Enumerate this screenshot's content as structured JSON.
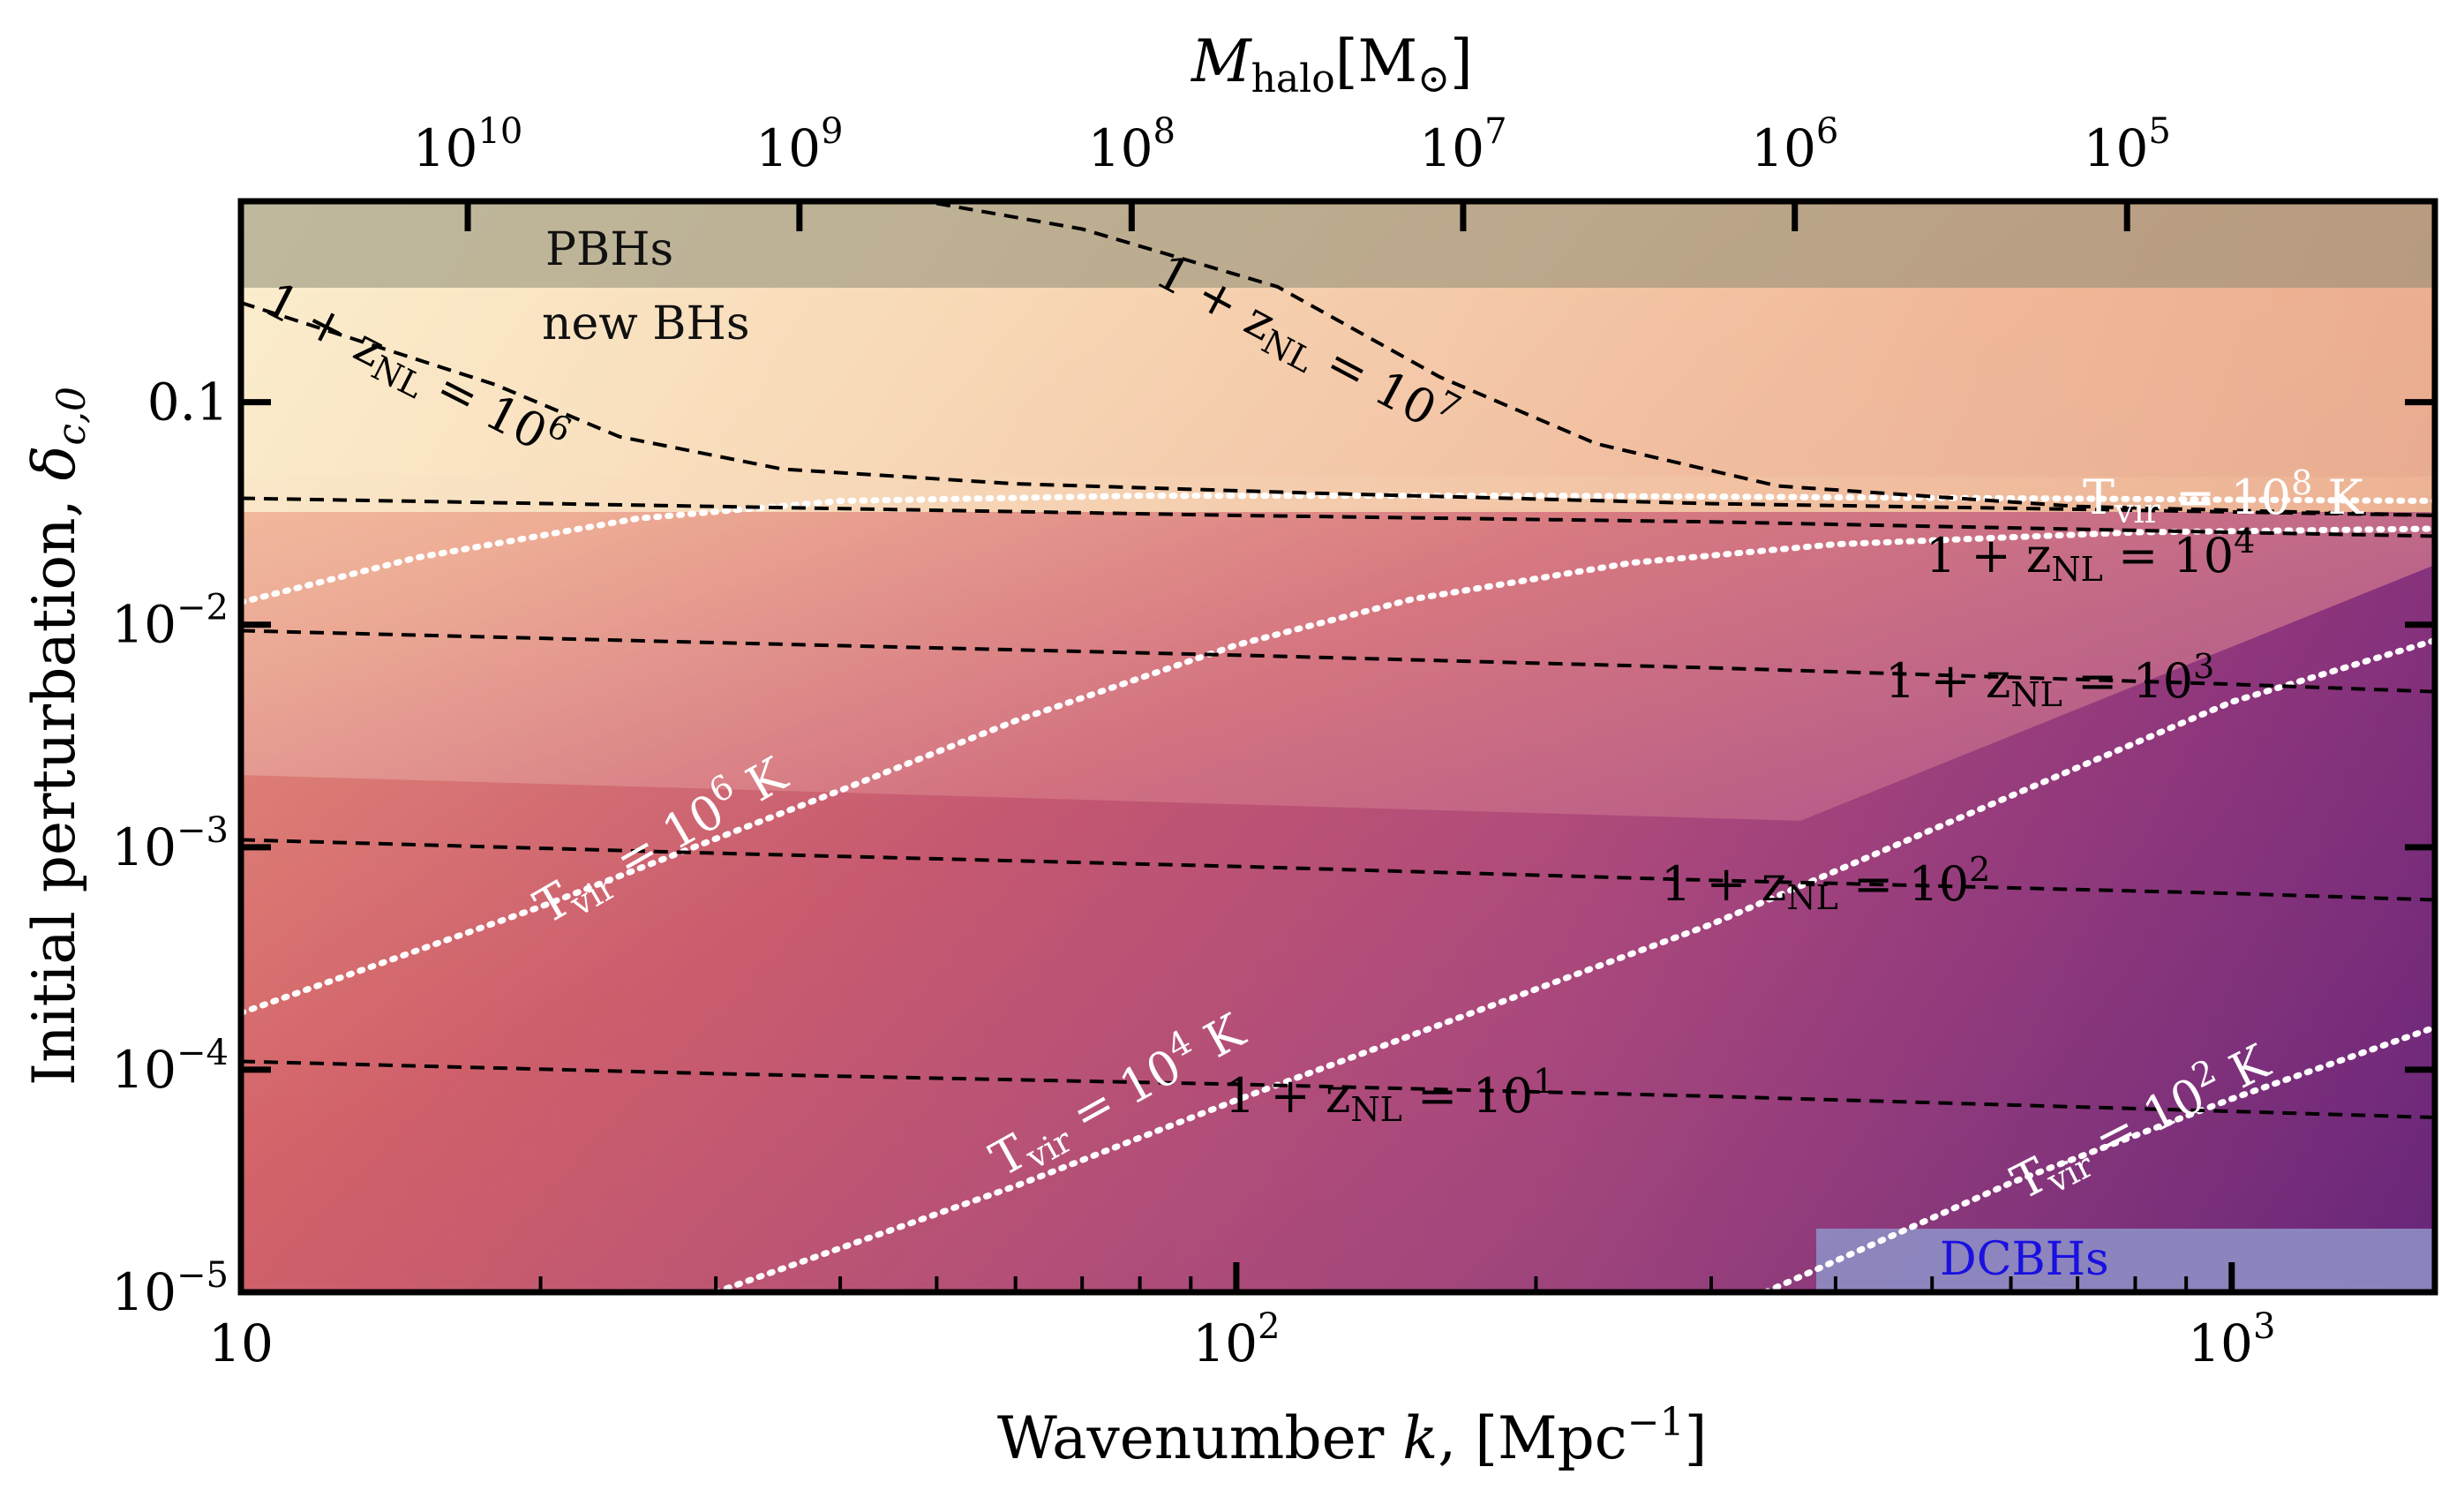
{
  "chart_data": {
    "type": "heatmap",
    "title": "",
    "xlabel": "Wavenumber k, [Mpc⁻¹]",
    "xlabel_main": "Wavenumber ",
    "xlabel_var": "k",
    "xlabel_unit": ", [Mpc",
    "xlabel_exp": "−1",
    "xlabel_close": "]",
    "ylabel": "Initial perturbation, δc,0",
    "ylabel_main": "Initial perturbation, ",
    "ylabel_var": "δ",
    "ylabel_sub": "c,0",
    "top_label": "Mhalo[M⊙]",
    "top_label_var": "M",
    "top_label_sub": "halo",
    "top_label_unit": "[M",
    "top_label_sun": "⊙",
    "top_label_close": "]",
    "xscale": "log",
    "yscale": "log",
    "xlim": [
      10,
      1600
    ],
    "ylim": [
      1e-05,
      0.8
    ],
    "x_ticks": [
      {
        "value": 10,
        "base": "10",
        "exp": ""
      },
      {
        "value": 100,
        "base": "10",
        "exp": "2"
      },
      {
        "value": 1000,
        "base": "10",
        "exp": "3"
      }
    ],
    "y_ticks": [
      {
        "value": 1e-05,
        "base": "10",
        "exp": "−5"
      },
      {
        "value": 0.0001,
        "base": "10",
        "exp": "−4"
      },
      {
        "value": 0.001,
        "base": "10",
        "exp": "−3"
      },
      {
        "value": 0.01,
        "base": "10",
        "exp": "−2"
      },
      {
        "value": 0.1,
        "base": "0.1",
        "exp": ""
      }
    ],
    "top_ticks": [
      {
        "k": 16.9,
        "base": "10",
        "exp": "10"
      },
      {
        "k": 36.4,
        "base": "10",
        "exp": "9"
      },
      {
        "k": 78.5,
        "base": "10",
        "exp": "8"
      },
      {
        "k": 169,
        "base": "10",
        "exp": "7"
      },
      {
        "k": 364,
        "base": "10",
        "exp": "6"
      },
      {
        "k": 785,
        "base": "10",
        "exp": "5"
      }
    ],
    "colormap": "magma (light at high δ, low k; dark at low δ, high k)",
    "regions": [
      {
        "name": "PBHs",
        "label": "PBHs",
        "y_min": 0.34,
        "y_max": 0.8,
        "color": "#8c8c74"
      },
      {
        "name": "new BHs",
        "label": "new BHs",
        "y_max": 0.34
      },
      {
        "name": "DCBHs",
        "label": "DCBHs",
        "x_min": 400,
        "x_max": 1600,
        "y_min": 1e-05,
        "y_max": 2e-05,
        "color": "#8e8ec4"
      }
    ],
    "z_NL_contours": [
      {
        "label_prefix": "1 + z",
        "label_sub": "NL",
        "label_eq": " = 10",
        "exp": "1",
        "points": [
          [
            10,
            0.000109
          ],
          [
            30,
            9.6e-05
          ],
          [
            100,
            8.6e-05
          ],
          [
            300,
            7.6e-05
          ],
          [
            1000,
            6.5e-05
          ],
          [
            1600,
            6.1e-05
          ]
        ]
      },
      {
        "label_prefix": "1 + z",
        "label_sub": "NL",
        "label_eq": " = 10",
        "exp": "2",
        "points": [
          [
            10,
            0.00108
          ],
          [
            30,
            0.00094
          ],
          [
            100,
            0.00082
          ],
          [
            300,
            0.00071
          ],
          [
            1000,
            0.00062
          ],
          [
            1600,
            0.00058
          ]
        ]
      },
      {
        "label_prefix": "1 + z",
        "label_sub": "NL",
        "label_eq": " = 10",
        "exp": "3",
        "points": [
          [
            10,
            0.0094
          ],
          [
            30,
            0.0083
          ],
          [
            100,
            0.0073
          ],
          [
            300,
            0.0064
          ],
          [
            1000,
            0.0054
          ],
          [
            1600,
            0.005
          ]
        ]
      },
      {
        "label_prefix": "1 + z",
        "label_sub": "NL",
        "label_eq": " = 10",
        "exp": "4",
        "points": [
          [
            10,
            0.037
          ],
          [
            30,
            0.034
          ],
          [
            100,
            0.031
          ],
          [
            300,
            0.029
          ],
          [
            1000,
            0.026
          ],
          [
            1600,
            0.025
          ]
        ]
      },
      {
        "label_prefix": "1 + z",
        "label_sub": "NL",
        "label_eq": " = 10",
        "exp": "6",
        "points": [
          [
            10,
            0.28
          ],
          [
            18,
            0.12
          ],
          [
            24,
            0.07
          ],
          [
            35,
            0.05
          ],
          [
            60,
            0.043
          ],
          [
            120,
            0.039
          ],
          [
            300,
            0.035
          ],
          [
            700,
            0.033
          ],
          [
            1600,
            0.031
          ]
        ]
      },
      {
        "label_prefix": "1 + z",
        "label_sub": "NL",
        "label_eq": " = 10",
        "exp": "7",
        "points": [
          [
            45,
            0.85
          ],
          [
            70,
            0.6
          ],
          [
            110,
            0.33
          ],
          [
            160,
            0.13
          ],
          [
            230,
            0.065
          ],
          [
            350,
            0.042
          ],
          [
            700,
            0.034
          ],
          [
            1600,
            0.031
          ]
        ]
      }
    ],
    "T_vir_contours": [
      {
        "label_prefix": "T",
        "label_sub": "vir",
        "label_eq": " = 10",
        "exp": "2",
        "label_unit": " K",
        "points": [
          [
            340,
            1e-05
          ],
          [
            600,
            3.1e-05
          ],
          [
            1000,
            7.4e-05
          ],
          [
            1600,
            0.000155
          ]
        ]
      },
      {
        "label_prefix": "T",
        "label_sub": "vir",
        "label_eq": " = 10",
        "exp": "4",
        "label_unit": " K",
        "points": [
          [
            30,
            1e-05
          ],
          [
            60,
            3e-05
          ],
          [
            100,
            7.3e-05
          ],
          [
            300,
            0.00045
          ],
          [
            600,
            0.0017
          ],
          [
            1000,
            0.0045
          ],
          [
            1600,
            0.0085
          ]
        ]
      },
      {
        "label_prefix": "T",
        "label_sub": "vir",
        "label_eq": " = 10",
        "exp": "6",
        "label_unit": " K",
        "points": [
          [
            10,
            0.00018
          ],
          [
            20,
            0.00054
          ],
          [
            40,
            0.0018
          ],
          [
            60,
            0.0037
          ],
          [
            100,
            0.0081
          ],
          [
            150,
            0.013
          ],
          [
            250,
            0.019
          ],
          [
            400,
            0.023
          ],
          [
            800,
            0.026
          ],
          [
            1600,
            0.027
          ]
        ]
      },
      {
        "label_prefix": "T",
        "label_sub": "vir",
        "label_eq": " = 10",
        "exp": "8",
        "label_unit": " K",
        "points": [
          [
            10,
            0.0126
          ],
          [
            15,
            0.02
          ],
          [
            25,
            0.03
          ],
          [
            40,
            0.036
          ],
          [
            80,
            0.038
          ],
          [
            200,
            0.038
          ],
          [
            600,
            0.037
          ],
          [
            1600,
            0.036
          ]
        ]
      }
    ]
  }
}
